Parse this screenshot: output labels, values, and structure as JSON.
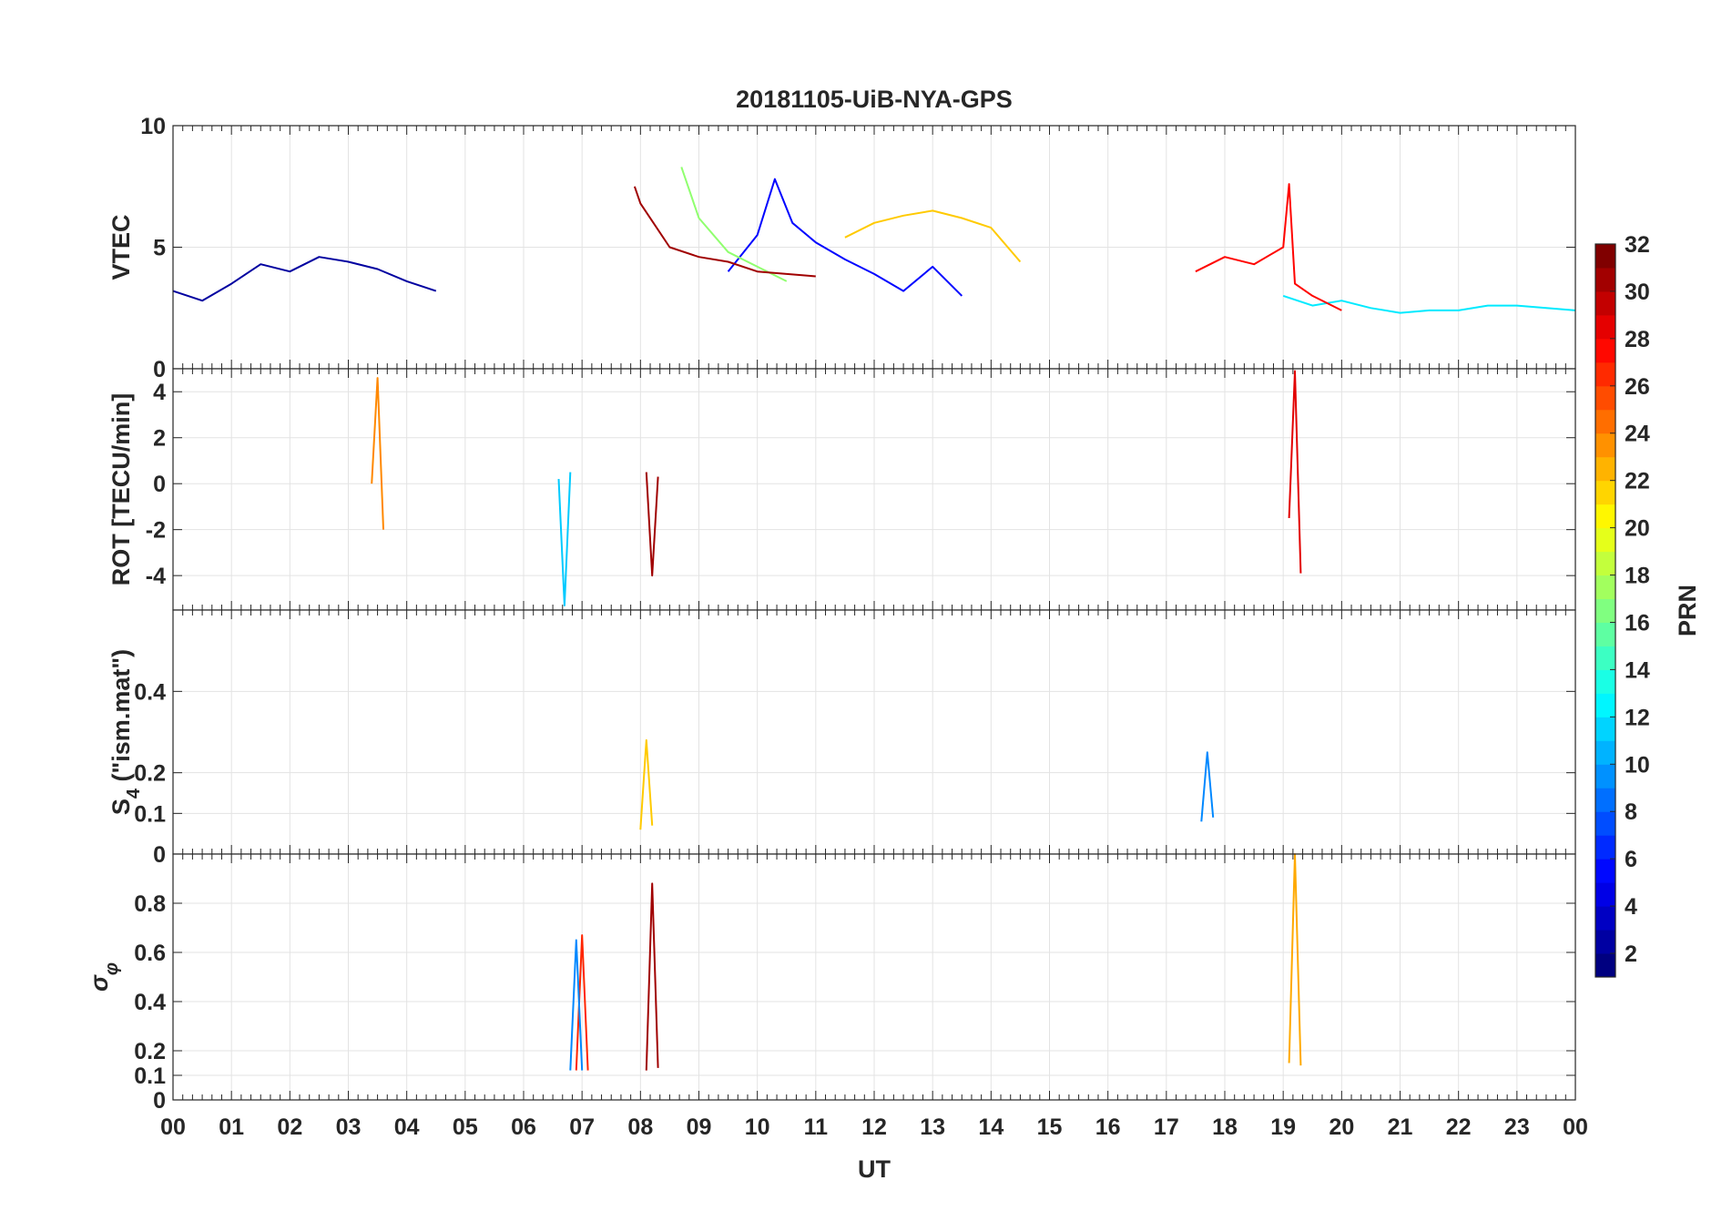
{
  "title": "20181105-UiB-NYA-GPS",
  "x_axis": {
    "label": "UT",
    "ticks": [
      "00",
      "01",
      "02",
      "03",
      "04",
      "05",
      "06",
      "07",
      "08",
      "09",
      "10",
      "11",
      "12",
      "13",
      "14",
      "15",
      "16",
      "17",
      "18",
      "19",
      "20",
      "21",
      "22",
      "23",
      "00"
    ]
  },
  "colorbar": {
    "label": "PRN",
    "range": [
      1,
      32
    ],
    "ticks": [
      "2",
      "4",
      "6",
      "8",
      "10",
      "12",
      "14",
      "16",
      "18",
      "20",
      "22",
      "24",
      "26",
      "28",
      "30",
      "32"
    ],
    "colormap": "jet"
  },
  "panels": [
    {
      "id": "vtec",
      "ylabel": "VTEC",
      "ylim": [
        0,
        10
      ],
      "ticks": [
        "0",
        "5",
        "10"
      ],
      "tick_values": [
        0,
        5,
        10
      ]
    },
    {
      "id": "rot",
      "ylabel": "ROT [TECU/min]",
      "ylim": [
        -5.5,
        5
      ],
      "ticks": [
        "-4",
        "-2",
        "0",
        "2",
        "4"
      ],
      "tick_values": [
        -4,
        -2,
        0,
        2,
        4
      ]
    },
    {
      "id": "s4",
      "ylabel_main": "S",
      "ylabel_sub": "4",
      "ylabel_rest": " (\"ism.mat\")",
      "ylim": [
        0,
        0.6
      ],
      "ticks": [
        "0",
        "0.1",
        "0.2",
        "0.4"
      ],
      "tick_values": [
        0,
        0.1,
        0.2,
        0.4
      ]
    },
    {
      "id": "sigphi",
      "ylabel_main": "σ",
      "ylabel_sub": "φ",
      "ylim": [
        0,
        1
      ],
      "ticks": [
        "0",
        "0.1",
        "0.2",
        "0.4",
        "0.6",
        "0.8"
      ],
      "tick_values": [
        0,
        0.1,
        0.2,
        0.4,
        0.6,
        0.8
      ]
    }
  ],
  "chart_data": {
    "type": "line",
    "title": "20181105-UiB-NYA-GPS",
    "xlabel": "UT",
    "xlim": [
      0,
      24
    ],
    "grid": true,
    "color_by": "PRN",
    "series": [
      {
        "name": "PRN 2",
        "panel": "vtec",
        "x": [
          0.0,
          0.5,
          1.0,
          1.5,
          2.0,
          2.5,
          3.0,
          3.5,
          4.0,
          4.5
        ],
        "values": [
          3.2,
          2.8,
          3.5,
          4.3,
          4.0,
          4.6,
          4.4,
          4.1,
          3.6,
          3.2
        ]
      },
      {
        "name": "PRN 5",
        "panel": "vtec",
        "x": [
          9.5,
          10.0,
          10.3,
          10.6,
          11.0,
          11.5,
          12.0,
          12.5,
          13.0,
          13.5
        ],
        "values": [
          4.0,
          5.5,
          7.8,
          6.0,
          5.2,
          4.5,
          3.9,
          3.2,
          4.2,
          3.0
        ]
      },
      {
        "name": "PRN 12",
        "panel": "vtec",
        "x": [
          19.0,
          19.5,
          20.0,
          20.5,
          21.0,
          21.5,
          22.0,
          22.5,
          23.0,
          23.5,
          24.0
        ],
        "values": [
          3.0,
          2.6,
          2.8,
          2.5,
          2.3,
          2.4,
          2.4,
          2.6,
          2.6,
          2.5,
          2.4
        ]
      },
      {
        "name": "PRN 17",
        "panel": "vtec",
        "x": [
          8.7,
          9.0,
          9.5,
          10.0,
          10.5
        ],
        "values": [
          8.3,
          6.2,
          4.8,
          4.2,
          3.6
        ]
      },
      {
        "name": "PRN 22",
        "panel": "vtec",
        "x": [
          11.5,
          12.0,
          12.5,
          13.0,
          13.5,
          14.0,
          14.5
        ],
        "values": [
          5.4,
          6.0,
          6.3,
          6.5,
          6.2,
          5.8,
          4.4
        ]
      },
      {
        "name": "PRN 28",
        "panel": "vtec",
        "x": [
          17.5,
          18.0,
          18.5,
          19.0,
          19.1,
          19.2,
          19.5,
          20.0
        ],
        "values": [
          4.0,
          4.6,
          4.3,
          5.0,
          7.6,
          3.5,
          3.0,
          2.4
        ]
      },
      {
        "name": "PRN 31",
        "panel": "vtec",
        "x": [
          7.9,
          8.0,
          8.5,
          9.0,
          9.5,
          10.0,
          11.0
        ],
        "values": [
          7.5,
          6.8,
          5.0,
          4.6,
          4.4,
          4.0,
          3.8
        ]
      },
      {
        "name": "PRN 11",
        "panel": "rot",
        "x": [
          6.6,
          6.7,
          6.8
        ],
        "values": [
          0.2,
          -5.3,
          0.5
        ]
      },
      {
        "name": "PRN 24",
        "panel": "rot",
        "x": [
          3.4,
          3.5,
          3.6
        ],
        "values": [
          0.0,
          4.6,
          -2.0
        ]
      },
      {
        "name": "PRN 29",
        "panel": "rot",
        "x": [
          19.1,
          19.2,
          19.3
        ],
        "values": [
          -1.5,
          4.9,
          -3.9
        ]
      },
      {
        "name": "PRN 31",
        "panel": "rot",
        "x": [
          8.1,
          8.2,
          8.3
        ],
        "values": [
          0.5,
          -4.0,
          0.3
        ]
      },
      {
        "name": "PRN 22",
        "panel": "s4",
        "x": [
          8.0,
          8.1,
          8.2
        ],
        "values": [
          0.06,
          0.28,
          0.07
        ]
      },
      {
        "name": "PRN 9",
        "panel": "s4",
        "x": [
          17.6,
          17.7,
          17.8
        ],
        "values": [
          0.08,
          0.25,
          0.09
        ]
      },
      {
        "name": "PRN 31",
        "panel": "sigphi",
        "x": [
          8.1,
          8.2,
          8.3
        ],
        "values": [
          0.12,
          0.88,
          0.13
        ]
      },
      {
        "name": "PRN 23",
        "panel": "sigphi",
        "x": [
          19.1,
          19.2,
          19.3
        ],
        "values": [
          0.15,
          1.0,
          0.14
        ]
      },
      {
        "name": "PRN 27",
        "panel": "sigphi",
        "x": [
          6.9,
          7.0,
          7.1
        ],
        "values": [
          0.12,
          0.67,
          0.12
        ]
      },
      {
        "name": "PRN 9",
        "panel": "sigphi",
        "x": [
          6.8,
          6.9,
          7.0
        ],
        "values": [
          0.12,
          0.65,
          0.12
        ]
      }
    ]
  }
}
